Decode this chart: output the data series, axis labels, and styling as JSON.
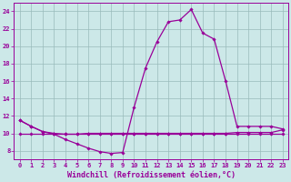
{
  "x": [
    0,
    1,
    2,
    3,
    4,
    5,
    6,
    7,
    8,
    9,
    10,
    11,
    12,
    13,
    14,
    15,
    16,
    17,
    18,
    19,
    20,
    21,
    22,
    23
  ],
  "line1_y": [
    11.5,
    10.8,
    10.2,
    10.0,
    9.9,
    9.9,
    10.0,
    10.0,
    10.0,
    10.0,
    10.0,
    10.0,
    10.0,
    10.0,
    10.0,
    10.0,
    10.0,
    10.0,
    10.0,
    10.1,
    10.1,
    10.1,
    10.1,
    10.4
  ],
  "line2_y": [
    11.5,
    10.8,
    10.2,
    9.9,
    9.3,
    8.8,
    8.3,
    7.9,
    7.7,
    7.8,
    13.0,
    17.5,
    20.5,
    22.8,
    23.0,
    24.2,
    21.5,
    20.8,
    16.0,
    10.8,
    10.8,
    10.8,
    10.8,
    10.5
  ],
  "line3_y": [
    10.0,
    10.0,
    10.0,
    10.0,
    10.0,
    10.0,
    10.0,
    10.0,
    10.0,
    10.0,
    10.0,
    10.0,
    10.0,
    10.0,
    10.0,
    10.0,
    10.0,
    10.0,
    10.0,
    10.0,
    10.0,
    10.0,
    10.0,
    10.0
  ],
  "line_color": "#990099",
  "bg_color": "#cce8e8",
  "grid_color": "#99bbbb",
  "xlabel": "Windchill (Refroidissement éolien,°C)",
  "xlim": [
    -0.5,
    23.5
  ],
  "ylim": [
    7.0,
    25.0
  ],
  "yticks": [
    8,
    10,
    12,
    14,
    16,
    18,
    20,
    22,
    24
  ],
  "xticks": [
    0,
    1,
    2,
    3,
    4,
    5,
    6,
    7,
    8,
    9,
    10,
    11,
    12,
    13,
    14,
    15,
    16,
    17,
    18,
    19,
    20,
    21,
    22,
    23
  ],
  "xlabel_fontsize": 6.0,
  "tick_fontsize": 5.0
}
